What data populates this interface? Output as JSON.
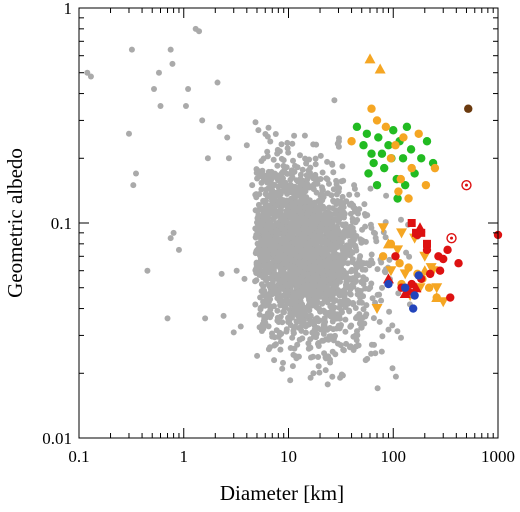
{
  "chart_data": {
    "type": "scatter",
    "xlabel": "Diameter [km]",
    "ylabel": "Geometric albedo",
    "x_scale": "log",
    "y_scale": "log",
    "xlim": [
      0.1,
      1000
    ],
    "ylim": [
      0.01,
      1
    ],
    "x_ticks": [
      {
        "value": 0.1,
        "label": "0.1"
      },
      {
        "value": 1,
        "label": "1"
      },
      {
        "value": 10,
        "label": "10"
      },
      {
        "value": 100,
        "label": "100"
      },
      {
        "value": 1000,
        "label": "1000"
      }
    ],
    "y_ticks": [
      {
        "value": 0.01,
        "label": "0.01"
      },
      {
        "value": 0.1,
        "label": "0.1"
      },
      {
        "value": 1,
        "label": "1"
      }
    ],
    "grid": false,
    "background_cloud": {
      "color": "#aaaaaa",
      "description_points": [
        [
          0.12,
          0.5
        ],
        [
          0.13,
          0.48
        ],
        [
          0.3,
          0.26
        ],
        [
          0.32,
          0.64
        ],
        [
          0.33,
          0.15
        ],
        [
          0.35,
          0.17
        ],
        [
          0.45,
          0.06
        ],
        [
          0.52,
          0.42
        ],
        [
          0.58,
          0.5
        ],
        [
          0.6,
          0.35
        ],
        [
          0.75,
          0.64
        ],
        [
          0.78,
          0.55
        ],
        [
          0.75,
          0.085
        ],
        [
          0.8,
          0.09
        ],
        [
          0.7,
          0.036
        ],
        [
          0.9,
          0.075
        ],
        [
          1.05,
          0.35
        ],
        [
          1.1,
          0.42
        ],
        [
          1.3,
          0.8
        ],
        [
          1.4,
          0.78
        ],
        [
          1.5,
          0.3
        ],
        [
          1.6,
          0.036
        ],
        [
          1.7,
          0.2
        ],
        [
          2.1,
          0.45
        ],
        [
          2.2,
          0.28
        ],
        [
          2.3,
          0.058
        ],
        [
          2.4,
          0.037
        ],
        [
          2.6,
          0.25
        ],
        [
          2.7,
          0.2
        ],
        [
          3.0,
          0.031
        ],
        [
          3.2,
          0.06
        ],
        [
          3.5,
          0.033
        ],
        [
          3.8,
          0.055
        ],
        [
          4.0,
          0.23
        ],
        [
          4.5,
          0.15
        ]
      ],
      "cluster_center": [
        15,
        0.07
      ],
      "count": 2200
    },
    "series": [
      {
        "marker": "circle",
        "color": "#22bb22",
        "points": [
          [
            45,
            0.28
          ],
          [
            52,
            0.23
          ],
          [
            56,
            0.26
          ],
          [
            62,
            0.21
          ],
          [
            65,
            0.19
          ],
          [
            72,
            0.25
          ],
          [
            78,
            0.21
          ],
          [
            82,
            0.18
          ],
          [
            90,
            0.23
          ],
          [
            96,
            0.2
          ],
          [
            100,
            0.27
          ],
          [
            108,
            0.16
          ],
          [
            115,
            0.24
          ],
          [
            124,
            0.2
          ],
          [
            135,
            0.28
          ],
          [
            148,
            0.22
          ],
          [
            160,
            0.17
          ],
          [
            185,
            0.2
          ],
          [
            210,
            0.24
          ],
          [
            240,
            0.19
          ],
          [
            58,
            0.17
          ],
          [
            70,
            0.15
          ],
          [
            110,
            0.13
          ],
          [
            130,
            0.15
          ]
        ]
      },
      {
        "marker": "circle",
        "color": "#f5a623",
        "points": [
          [
            40,
            0.24
          ],
          [
            62,
            0.34
          ],
          [
            70,
            0.3
          ],
          [
            85,
            0.28
          ],
          [
            95,
            0.2
          ],
          [
            105,
            0.23
          ],
          [
            112,
            0.14
          ],
          [
            118,
            0.16
          ],
          [
            125,
            0.25
          ],
          [
            140,
            0.13
          ],
          [
            150,
            0.18
          ],
          [
            175,
            0.26
          ],
          [
            205,
            0.15
          ],
          [
            250,
            0.18
          ],
          [
            80,
            0.07
          ],
          [
            95,
            0.08
          ],
          [
            115,
            0.065
          ],
          [
            140,
            0.062
          ],
          [
            170,
            0.058
          ],
          [
            190,
            0.055
          ],
          [
            220,
            0.05
          ],
          [
            260,
            0.045
          ],
          [
            120,
            0.052
          ]
        ]
      },
      {
        "marker": "triangle-up",
        "color": "#f5a623",
        "points": [
          [
            60,
            0.58
          ],
          [
            75,
            0.52
          ],
          [
            90,
            0.08
          ],
          [
            200,
            0.06
          ],
          [
            260,
            0.045
          ]
        ]
      },
      {
        "marker": "triangle-down",
        "color": "#f5a623",
        "points": [
          [
            80,
            0.095
          ],
          [
            120,
            0.09
          ],
          [
            160,
            0.085
          ],
          [
            200,
            0.07
          ],
          [
            230,
            0.062
          ],
          [
            110,
            0.075
          ],
          [
            260,
            0.05
          ],
          [
            130,
            0.058
          ],
          [
            95,
            0.06
          ],
          [
            145,
            0.046
          ],
          [
            180,
            0.05
          ],
          [
            300,
            0.043
          ],
          [
            70,
            0.04
          ],
          [
            240,
            0.06
          ]
        ]
      },
      {
        "marker": "circle",
        "color": "#dd1111",
        "points": [
          [
            170,
            0.088
          ],
          [
            210,
            0.075
          ],
          [
            270,
            0.07
          ],
          [
            300,
            0.068
          ],
          [
            330,
            0.075
          ],
          [
            420,
            0.065
          ],
          [
            120,
            0.05
          ],
          [
            150,
            0.052
          ],
          [
            185,
            0.055
          ],
          [
            225,
            0.058
          ],
          [
            350,
            0.045
          ],
          [
            280,
            0.06
          ],
          [
            105,
            0.07
          ],
          [
            1000,
            0.088
          ],
          [
            140,
            0.048
          ]
        ]
      },
      {
        "marker": "triangle-up",
        "color": "#dd1111",
        "points": [
          [
            180,
            0.095
          ],
          [
            90,
            0.055
          ],
          [
            165,
            0.05
          ],
          [
            130,
            0.047
          ]
        ]
      },
      {
        "marker": "square",
        "color": "#dd1111",
        "points": [
          [
            150,
            0.1
          ],
          [
            165,
            0.09
          ],
          [
            185,
            0.09
          ],
          [
            210,
            0.08
          ]
        ]
      },
      {
        "marker": "circle",
        "color": "#2244bb",
        "points": [
          [
            90,
            0.052
          ],
          [
            130,
            0.05
          ],
          [
            160,
            0.046
          ],
          [
            155,
            0.04
          ],
          [
            175,
            0.057
          ]
        ]
      },
      {
        "marker": "ring",
        "color": "#dd1111",
        "points": [
          [
            500,
            0.15
          ],
          [
            360,
            0.085
          ]
        ]
      },
      {
        "marker": "circle",
        "color": "#6b3a0e",
        "points": [
          [
            520,
            0.34
          ]
        ]
      }
    ]
  }
}
